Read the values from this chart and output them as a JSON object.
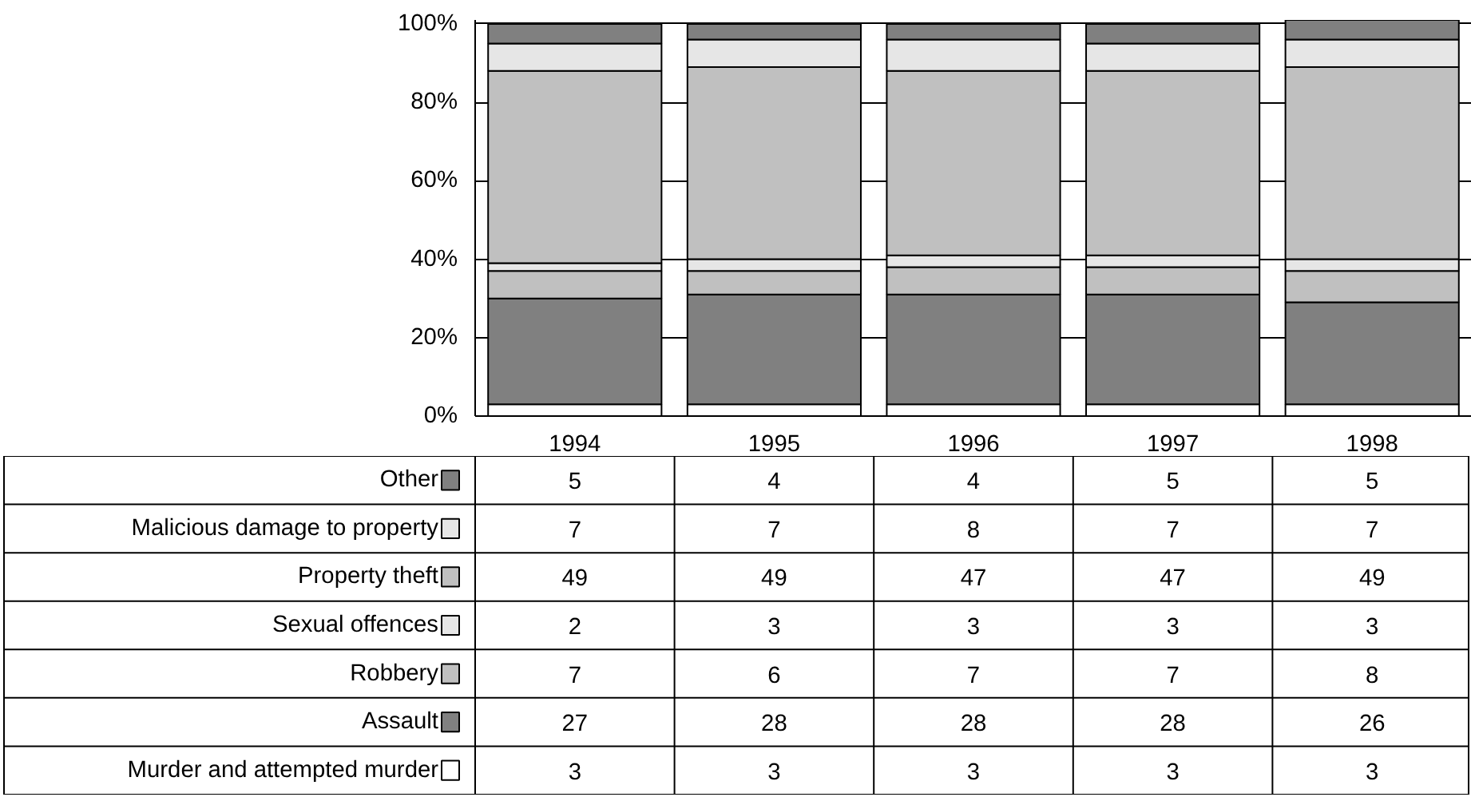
{
  "chart_data": {
    "type": "bar",
    "stacked": true,
    "categories": [
      "1994",
      "1995",
      "1996",
      "1997",
      "1998"
    ],
    "series": [
      {
        "name": "Murder and attempted murder",
        "color": "#ffffff",
        "values": [
          3,
          3,
          3,
          3,
          3
        ]
      },
      {
        "name": "Assault",
        "color": "#808080",
        "values": [
          27,
          28,
          28,
          28,
          26
        ]
      },
      {
        "name": "Robbery",
        "color": "#c0c0c0",
        "values": [
          7,
          6,
          7,
          7,
          8
        ]
      },
      {
        "name": "Sexual offences",
        "color": "#e6e6e6",
        "values": [
          2,
          3,
          3,
          3,
          3
        ]
      },
      {
        "name": "Property theft",
        "color": "#c0c0c0",
        "values": [
          49,
          49,
          47,
          47,
          49
        ]
      },
      {
        "name": "Malicious damage to property",
        "color": "#e6e6e6",
        "values": [
          7,
          7,
          8,
          7,
          7
        ]
      },
      {
        "name": "Other",
        "color": "#808080",
        "values": [
          5,
          4,
          4,
          5,
          5
        ]
      }
    ],
    "ylim": [
      0,
      101
    ],
    "yticks": [
      {
        "value": 0,
        "label": "0%"
      },
      {
        "value": 20,
        "label": "20%"
      },
      {
        "value": 40,
        "label": "40%"
      },
      {
        "value": 60,
        "label": "60%"
      },
      {
        "value": 80,
        "label": "80%"
      },
      {
        "value": 100,
        "label": "100%"
      }
    ],
    "grid": "y",
    "legend": "left",
    "data_labels": true
  }
}
